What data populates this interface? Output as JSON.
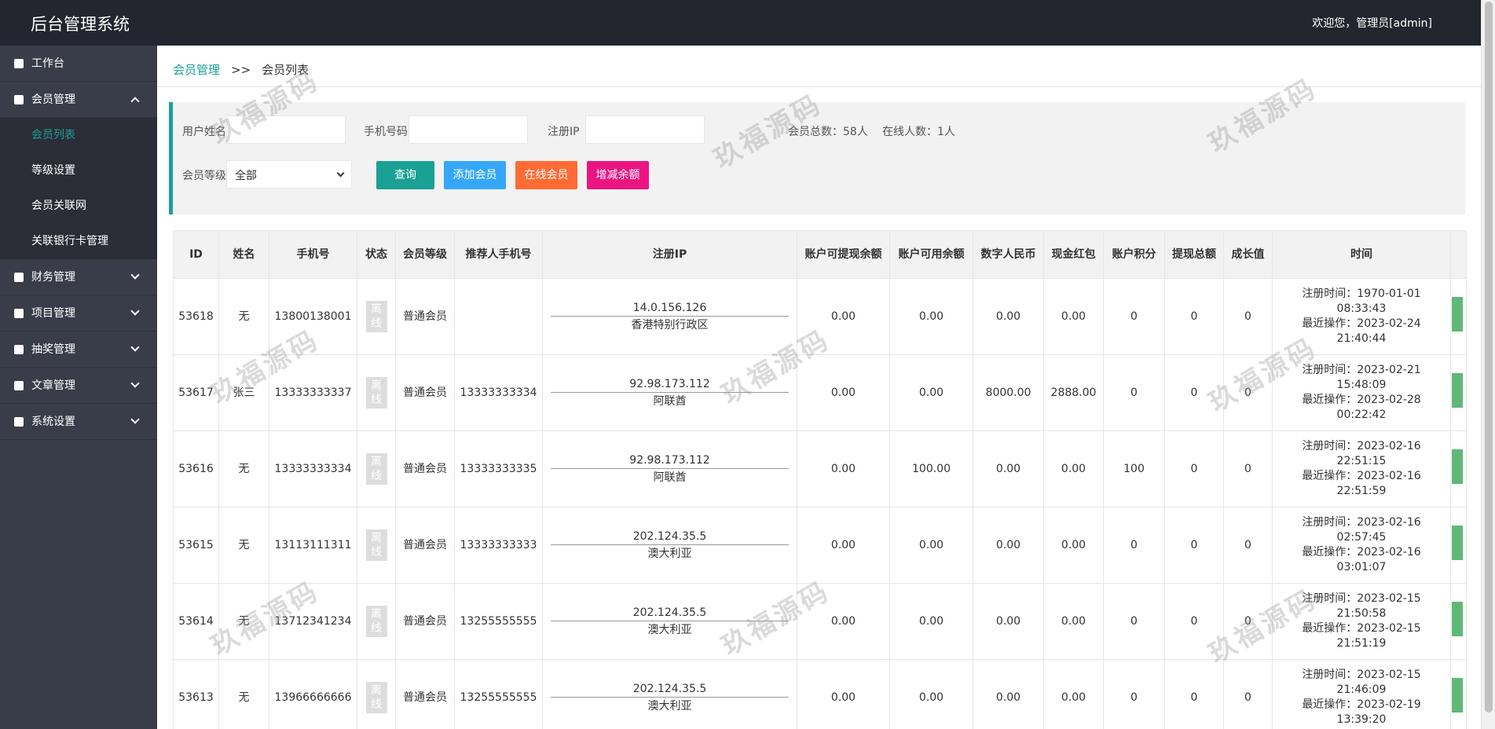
{
  "header": {
    "title": "后台管理系统",
    "user": "欢迎您，管理员[admin]"
  },
  "sidebar": [
    {
      "label": "工作台"
    },
    {
      "label": "会员管理",
      "children": [
        "会员列表",
        "等级设置",
        "会员关联网",
        "关联银行卡管理"
      ]
    },
    {
      "label": "财务管理"
    },
    {
      "label": "项目管理"
    },
    {
      "label": "抽奖管理"
    },
    {
      "label": "文章管理"
    },
    {
      "label": "系统设置"
    }
  ],
  "breadcrumb": {
    "parent": "会员管理",
    "separator": ">>",
    "current": "会员列表"
  },
  "filter": {
    "name_label": "用户姓名",
    "phone_label": "手机号码",
    "ip_label": "注册IP",
    "total": "会员总数：58人",
    "online": "在线人数：1人",
    "level_label": "会员等级",
    "level_option": "全部",
    "buttons": [
      "查询",
      "添加会员",
      "在线会员",
      "增减余额"
    ]
  },
  "watermark": "玖福源码",
  "table": {
    "headers": [
      "ID",
      "姓名",
      "手机号",
      "状态",
      "会员等级",
      "推荐人手机号",
      "注册IP",
      "账户可提现余额",
      "账户可用余额",
      "数字人民币",
      "现金红包",
      "账户积分",
      "提现总额",
      "成长值",
      "时间"
    ],
    "rows": [
      [
        "53618",
        "无",
        "13800138001",
        "离线",
        "普通会员",
        "",
        "14.0.156.126",
        "香港特别行政区",
        "0.00",
        "0.00",
        "0.00",
        "0.00",
        "0",
        "0",
        "0",
        "注册时间：1970-01-01 08:33:43",
        "最近操作：2023-02-24 21:40:44"
      ],
      [
        "53617",
        "张三",
        "13333333337",
        "离线",
        "普通会员",
        "13333333334",
        "92.98.173.112",
        "阿联酋",
        "0.00",
        "0.00",
        "8000.00",
        "2888.00",
        "0",
        "0",
        "0",
        "注册时间：2023-02-21 15:48:09",
        "最近操作：2023-02-28 00:22:42"
      ],
      [
        "53616",
        "无",
        "13333333334",
        "离线",
        "普通会员",
        "13333333335",
        "92.98.173.112",
        "阿联酋",
        "0.00",
        "100.00",
        "0.00",
        "0.00",
        "100",
        "0",
        "0",
        "注册时间：2023-02-16 22:51:15",
        "最近操作：2023-02-16 22:51:59"
      ],
      [
        "53615",
        "无",
        "13113111311",
        "离线",
        "普通会员",
        "13333333333",
        "202.124.35.5",
        "澳大利亚",
        "0.00",
        "0.00",
        "0.00",
        "0.00",
        "0",
        "0",
        "0",
        "注册时间：2023-02-16 02:57:45",
        "最近操作：2023-02-16 03:01:07"
      ],
      [
        "53614",
        "无",
        "13712341234",
        "离线",
        "普通会员",
        "13255555555",
        "202.124.35.5",
        "澳大利亚",
        "0.00",
        "0.00",
        "0.00",
        "0.00",
        "0",
        "0",
        "0",
        "注册时间：2023-02-15 21:50:58",
        "最近操作：2023-02-15 21:51:19"
      ],
      [
        "53613",
        "无",
        "13966666666",
        "离线",
        "普通会员",
        "13255555555",
        "202.124.35.5",
        "澳大利亚",
        "0.00",
        "0.00",
        "0.00",
        "0.00",
        "0",
        "0",
        "0",
        "注册时间：2023-02-15 21:46:09",
        "最近操作：2023-02-19 13:39:20"
      ]
    ]
  }
}
